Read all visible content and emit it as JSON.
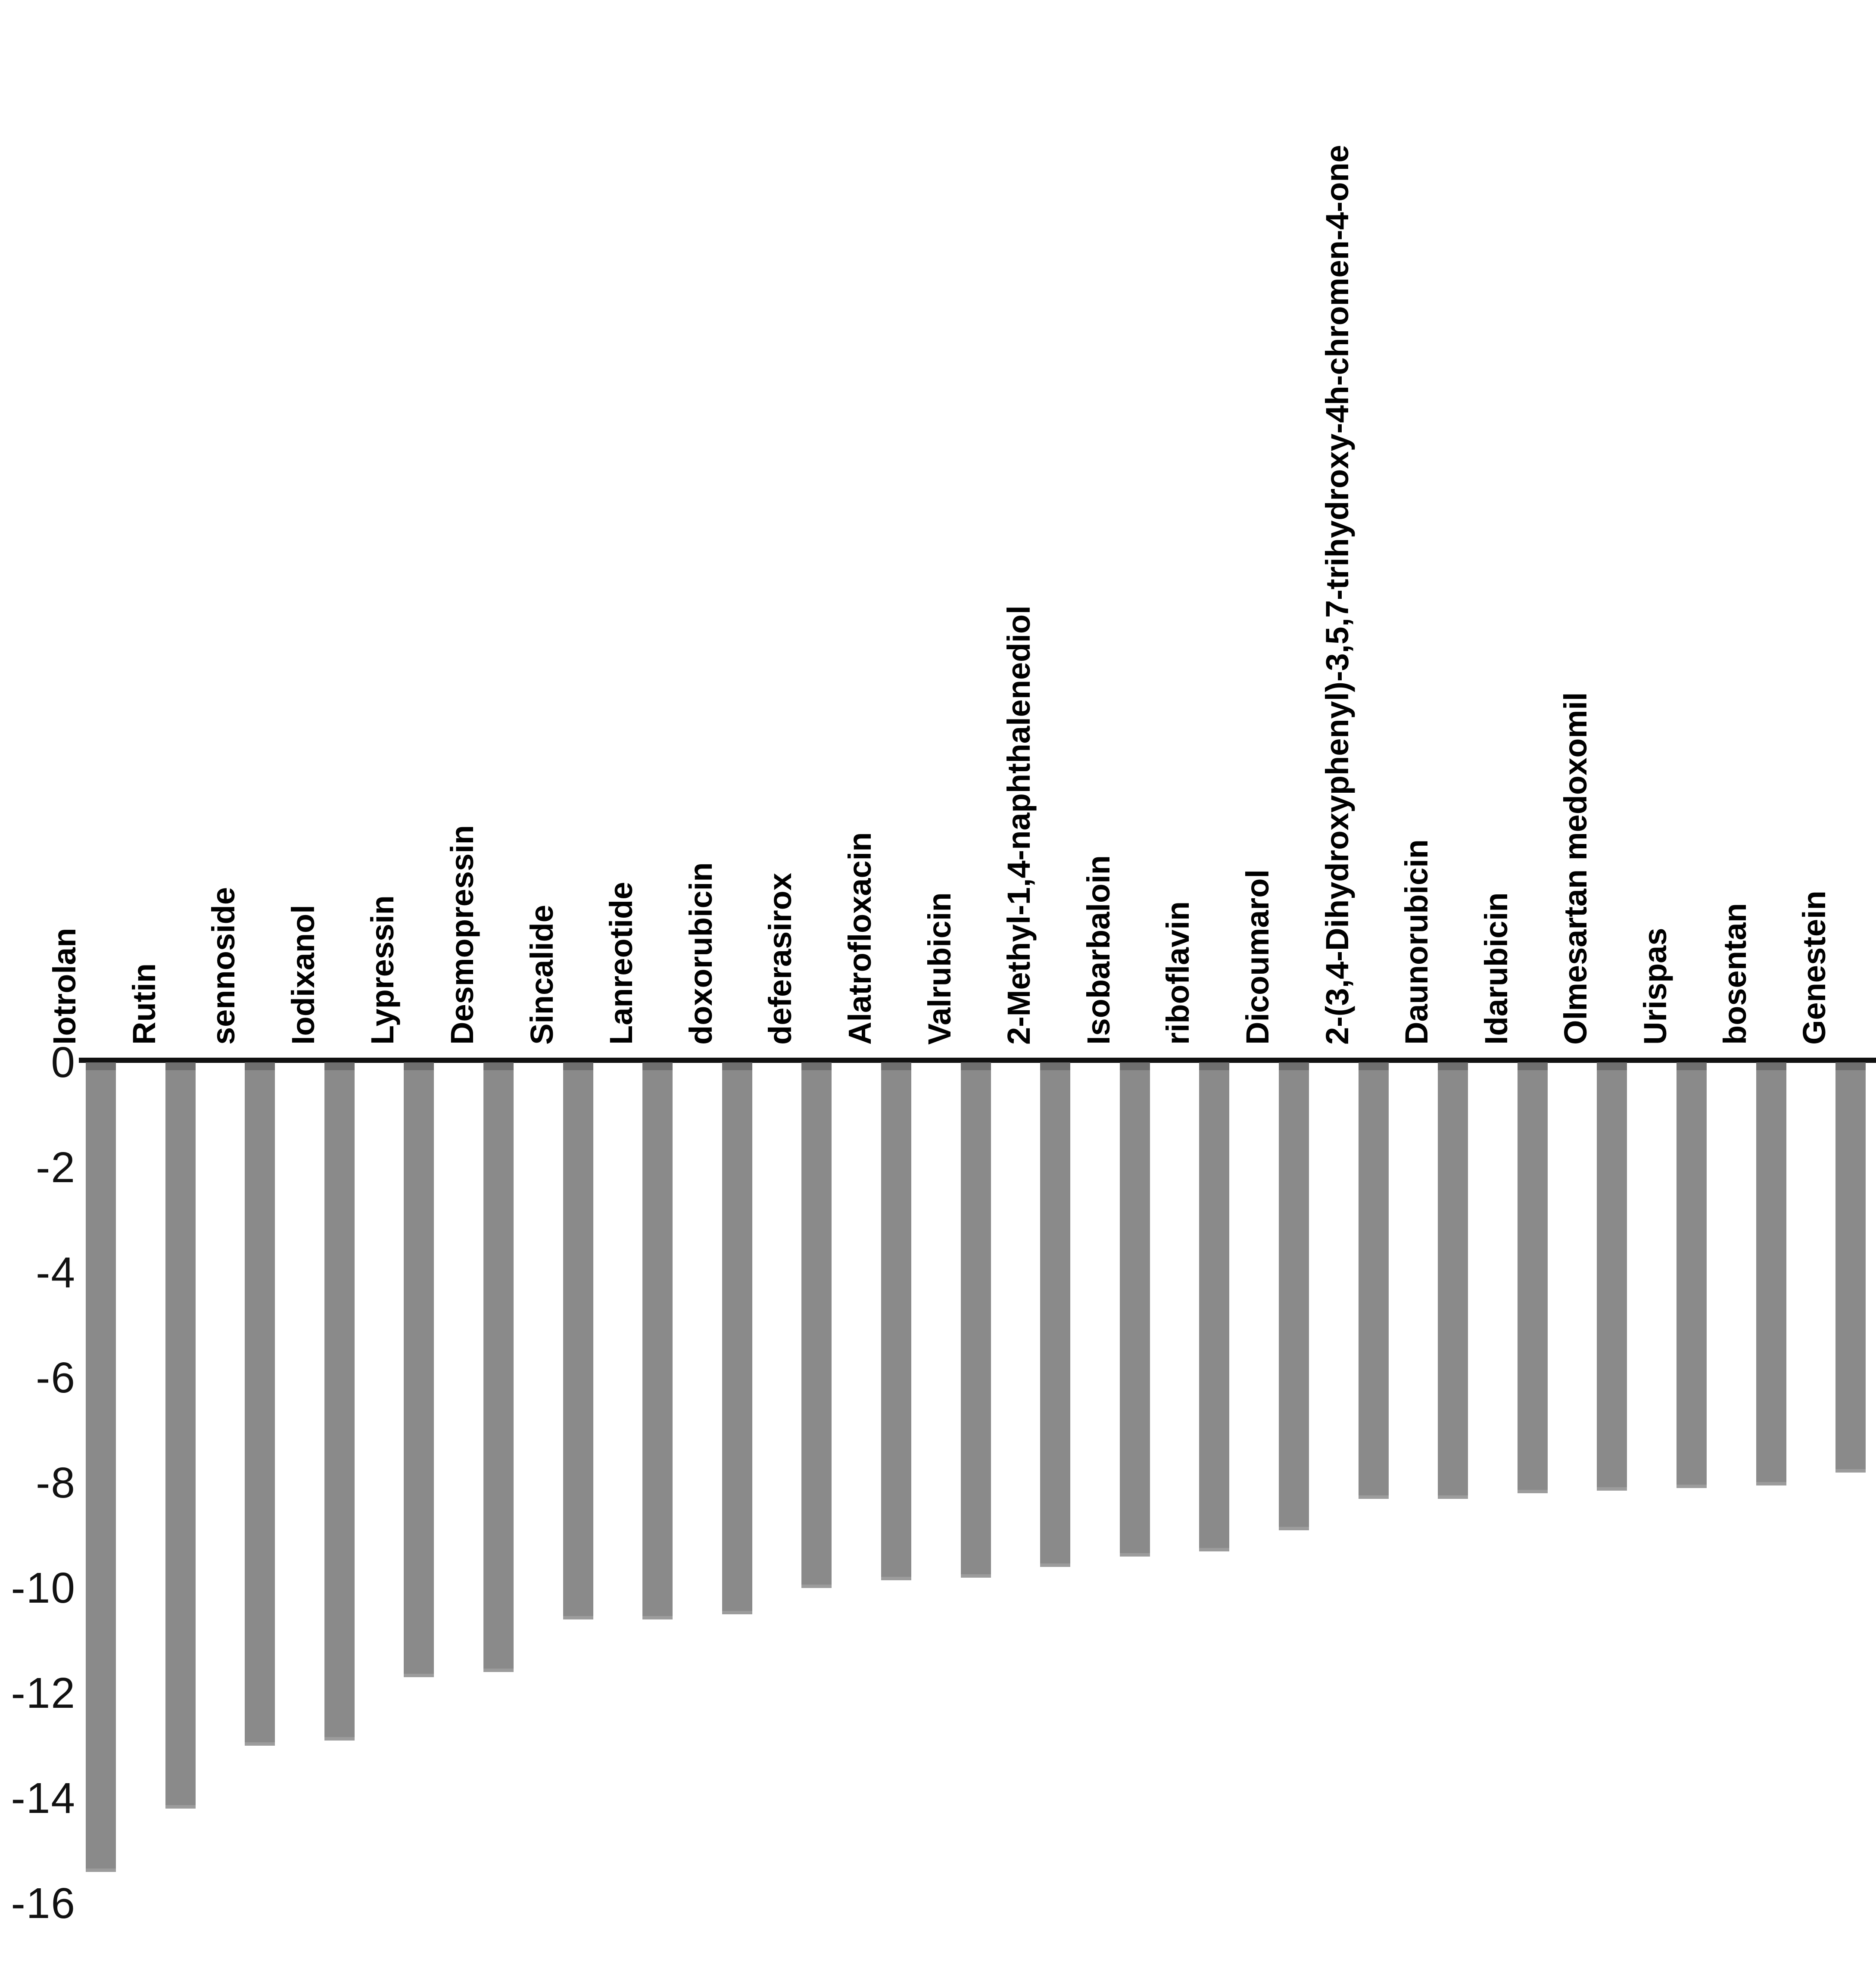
{
  "chart_data": {
    "type": "bar",
    "title": "",
    "xlabel": "",
    "ylabel": "",
    "orientation": "vertical-negative",
    "grid": false,
    "legend": false,
    "ylim": [
      -16,
      0
    ],
    "yticks": [
      0,
      -2,
      -4,
      -6,
      -8,
      -10,
      -12,
      -14,
      -16
    ],
    "ytick_labels": [
      "0",
      "-2",
      "-4",
      "-6",
      "-8",
      "-10",
      "-12",
      "-14",
      "-16"
    ],
    "categories": [
      "Iotrolan",
      "Rutin",
      "sennoside",
      "Iodixanol",
      "Lypressin",
      "Desmopressin",
      "Sincalide",
      "Lanreotide",
      "doxorubicin",
      "deferasirox",
      "Alatrofloxacin",
      "Valrubicin",
      "2-Methyl-1,4-naphthalenediol",
      "Isobarbaloin",
      "riboflavin",
      "Dicoumarol",
      "2-(3,4-Dihydroxyphenyl)-3,5,7-trihydroxy-4h-chromen-4-one",
      "Daunorubicin",
      "Idarubicin",
      "Olmesartan medoxomil",
      "Urispas",
      "bosentan",
      "Genestein"
    ],
    "values": [
      -15.4,
      -14.2,
      -13.0,
      -12.9,
      -11.7,
      -11.6,
      -10.6,
      -10.6,
      -10.5,
      -10.0,
      -9.85,
      -9.8,
      -9.6,
      -9.4,
      -9.3,
      -8.9,
      -8.3,
      -8.3,
      -8.2,
      -8.15,
      -8.1,
      -8.05,
      -7.8
    ],
    "colors": {
      "bar": "#8a8a8a",
      "axis": "#111111",
      "text": "#000000",
      "background": "#ffffff"
    }
  }
}
